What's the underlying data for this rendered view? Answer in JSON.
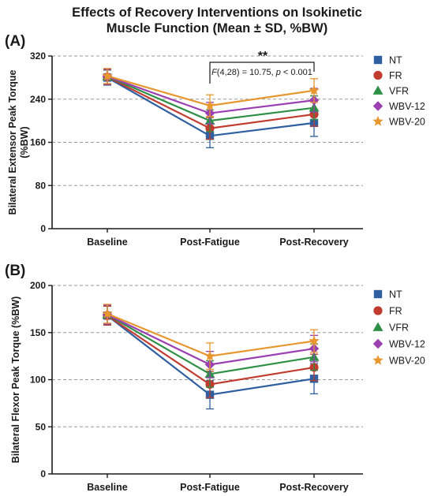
{
  "title_line1": "Effects of Recovery Interventions on Isokinetic",
  "title_line2": "Muscle Function (Mean ± SD, %BW)",
  "colors": {
    "NT": "#2e5fa0",
    "FR": "#c23b2f",
    "VFR": "#2e9046",
    "WBV-12": "#9b3fb1",
    "WBV-20": "#e8962e"
  },
  "chart_data": [
    {
      "panel": "(A)",
      "type": "line",
      "ylabel": "Bilateral Extensor Peak Torque\n(%BW)",
      "xlabel": "",
      "categories": [
        "Baseline",
        "Post-Fatigue",
        "Post-Recovery"
      ],
      "ylim": [
        0,
        320
      ],
      "yticks": [
        0,
        80,
        160,
        240,
        320
      ],
      "grid": "dashed horizontal",
      "legend": "right",
      "annotation_text": "F(4,28) = 10.75, p < 0.001",
      "annotation_parts": {
        "f": "F",
        "f_rest": "(4,28) = 10.75, ",
        "p": "p",
        "p_rest": " < 0.001"
      },
      "significance": "**",
      "series": [
        {
          "name": "NT",
          "marker": "square",
          "values": [
            280,
            172,
            196
          ],
          "sd": [
            14,
            22,
            25
          ]
        },
        {
          "name": "FR",
          "marker": "circle",
          "values": [
            281,
            186,
            212
          ],
          "sd": [
            14,
            20,
            22
          ]
        },
        {
          "name": "VFR",
          "marker": "triangle",
          "values": [
            282,
            200,
            224
          ],
          "sd": [
            14,
            20,
            22
          ]
        },
        {
          "name": "WBV-12",
          "marker": "diamond",
          "values": [
            282,
            214,
            238
          ],
          "sd": [
            14,
            20,
            22
          ]
        },
        {
          "name": "WBV-20",
          "marker": "star",
          "values": [
            283,
            228,
            256
          ],
          "sd": [
            14,
            20,
            22
          ]
        }
      ]
    },
    {
      "panel": "(B)",
      "type": "line",
      "ylabel": "Bilateral Flexor Peak Torque (%BW)",
      "xlabel": "",
      "categories": [
        "Baseline",
        "Post-Fatigue",
        "Post-Recovery"
      ],
      "ylim": [
        0,
        200
      ],
      "yticks": [
        0,
        50,
        100,
        150,
        200
      ],
      "grid": "dashed horizontal",
      "legend": "right",
      "series": [
        {
          "name": "NT",
          "marker": "square",
          "values": [
            168,
            84,
            101
          ],
          "sd": [
            10,
            15,
            16
          ]
        },
        {
          "name": "FR",
          "marker": "circle",
          "values": [
            168,
            95,
            113
          ],
          "sd": [
            10,
            14,
            14
          ]
        },
        {
          "name": "VFR",
          "marker": "triangle",
          "values": [
            169,
            106,
            124
          ],
          "sd": [
            10,
            14,
            14
          ]
        },
        {
          "name": "WBV-12",
          "marker": "diamond",
          "values": [
            169,
            116,
            133
          ],
          "sd": [
            10,
            14,
            14
          ]
        },
        {
          "name": "WBV-20",
          "marker": "star",
          "values": [
            170,
            125,
            141
          ],
          "sd": [
            10,
            14,
            12
          ]
        }
      ]
    }
  ]
}
